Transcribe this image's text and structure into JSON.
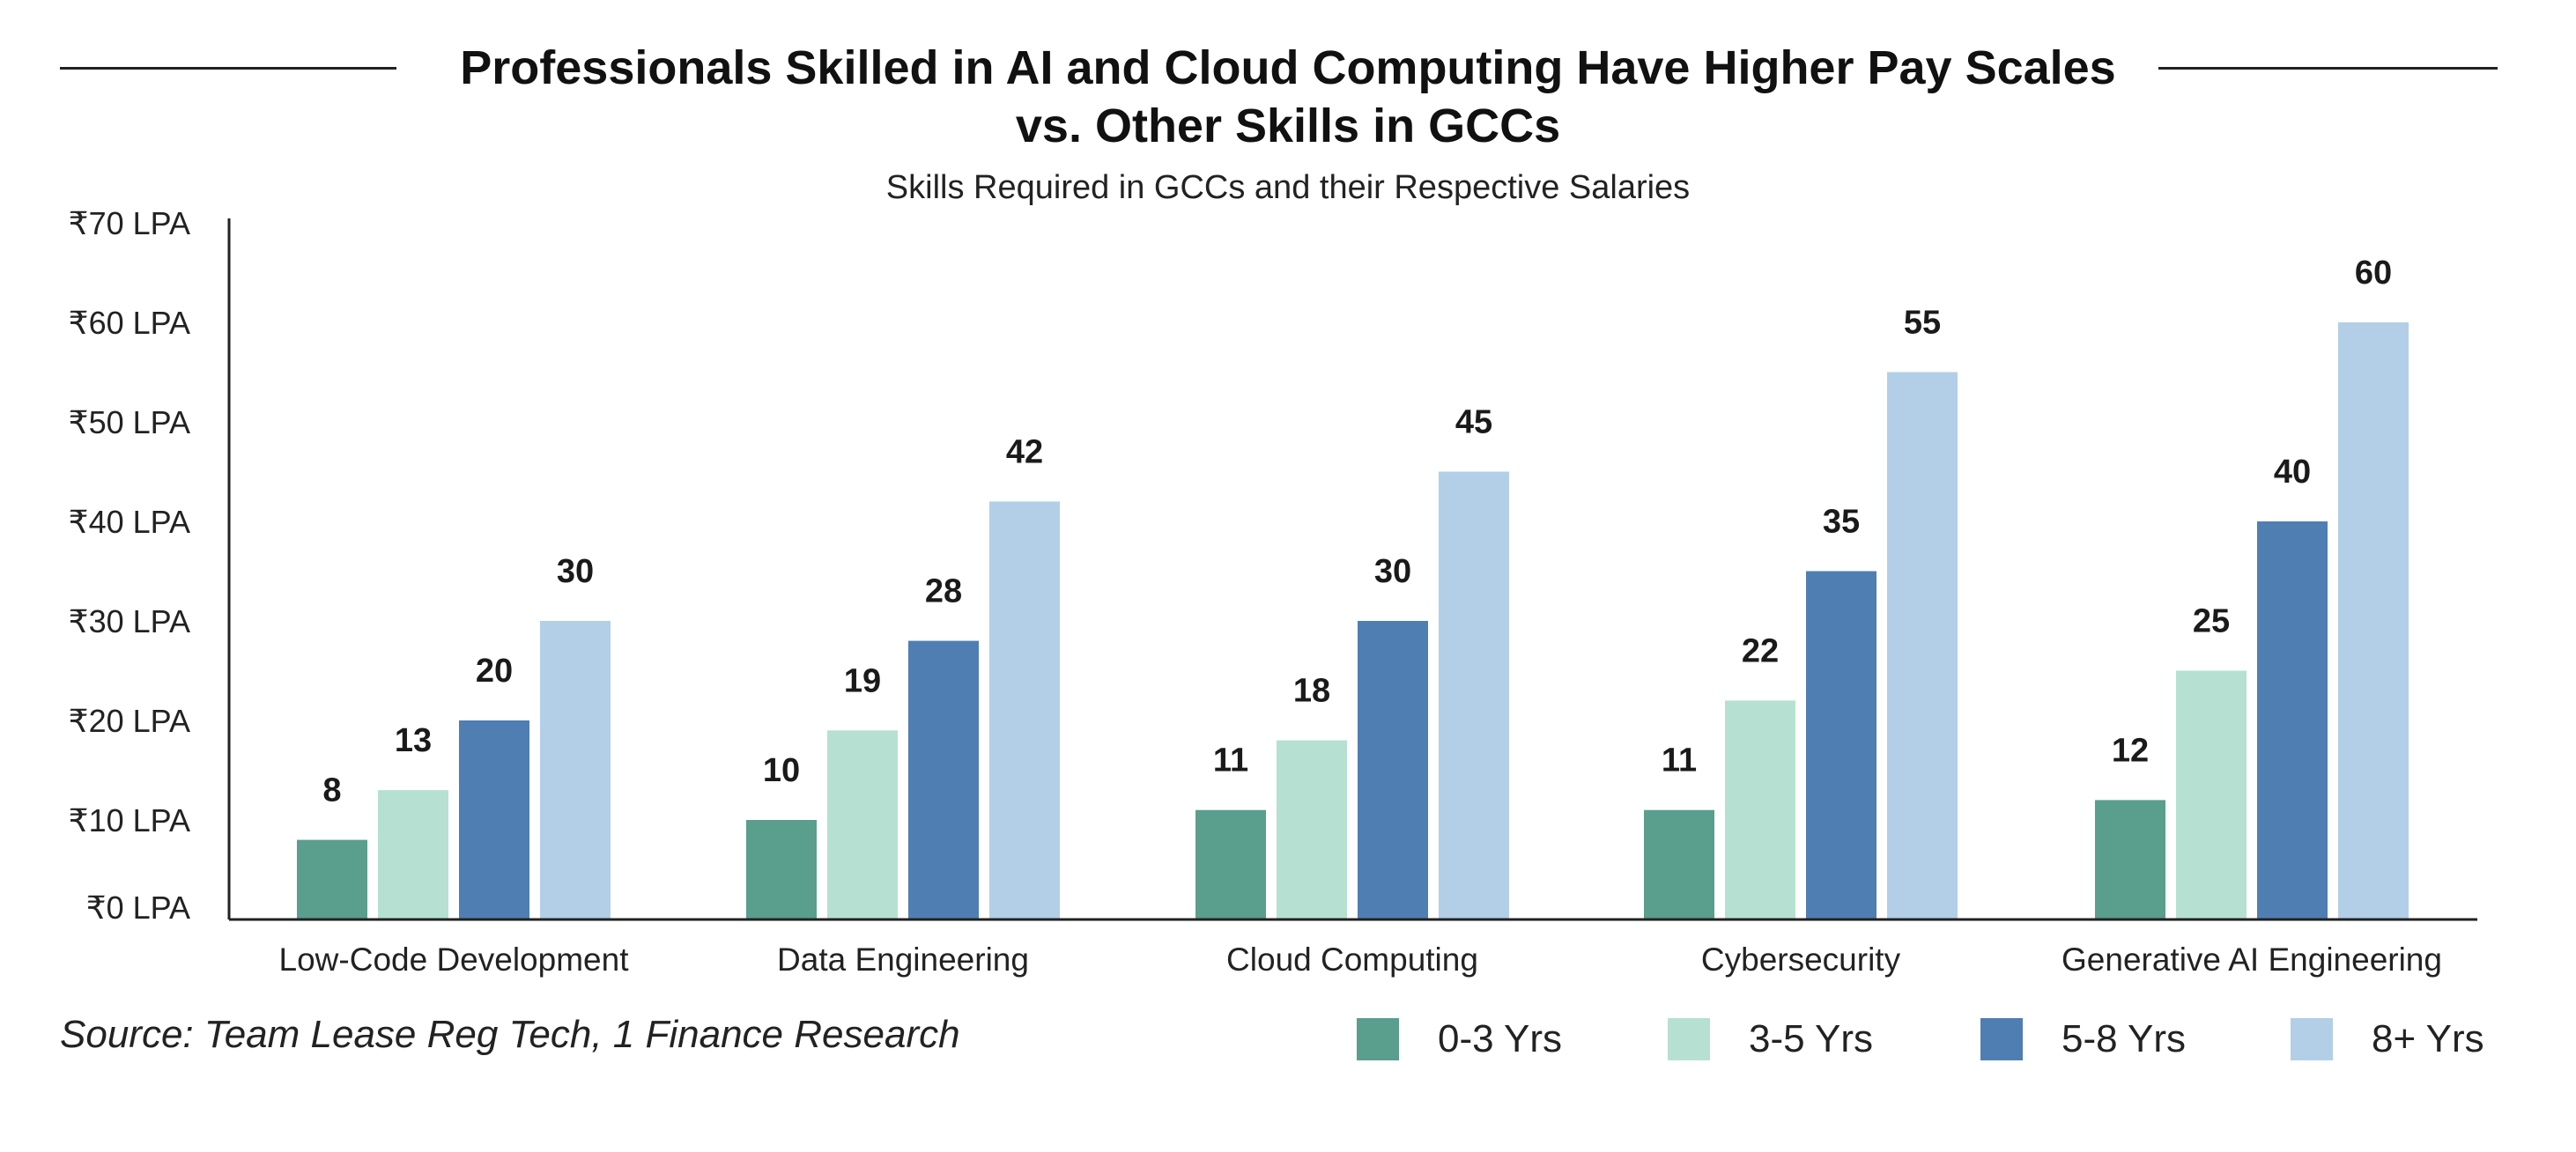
{
  "chart_data": {
    "type": "bar",
    "title_lines": [
      "Professionals Skilled in AI and Cloud Computing Have Higher Pay Scales",
      "vs. Other Skills in GCCs"
    ],
    "subtitle": "Skills Required in GCCs and their Respective Salaries",
    "categories": [
      "Low-Code Development",
      "Data Engineering",
      "Cloud Computing",
      "Cybersecurity",
      "Generative AI Engineering"
    ],
    "series": [
      {
        "name": "0-3 Yrs",
        "color": "#5a9e8d",
        "values": [
          8,
          10,
          11,
          11,
          12
        ]
      },
      {
        "name": "3-5 Yrs",
        "color": "#b6e0d2",
        "values": [
          13,
          19,
          18,
          22,
          25
        ]
      },
      {
        "name": "5-8 Yrs",
        "color": "#4f7eb3",
        "values": [
          20,
          28,
          30,
          35,
          40
        ]
      },
      {
        "name": "8+ Yrs",
        "color": "#b3cfe7",
        "values": [
          30,
          42,
          45,
          55,
          60
        ]
      }
    ],
    "yticks": [
      {
        "value": 0,
        "label": "₹0 LPA"
      },
      {
        "value": 10,
        "label": "₹10 LPA"
      },
      {
        "value": 20,
        "label": "₹20 LPA"
      },
      {
        "value": 30,
        "label": "₹30 LPA"
      },
      {
        "value": 40,
        "label": "₹40 LPA"
      },
      {
        "value": 50,
        "label": "₹50 LPA"
      },
      {
        "value": 60,
        "label": "₹60 LPA"
      },
      {
        "value": 70,
        "label": "₹70 LPA"
      }
    ],
    "ylim": [
      0,
      70
    ],
    "grid": false,
    "legend_position": "bottom-right",
    "data_labels": true
  },
  "source": "Source: Team Lease Reg Tech, 1 Finance Research"
}
